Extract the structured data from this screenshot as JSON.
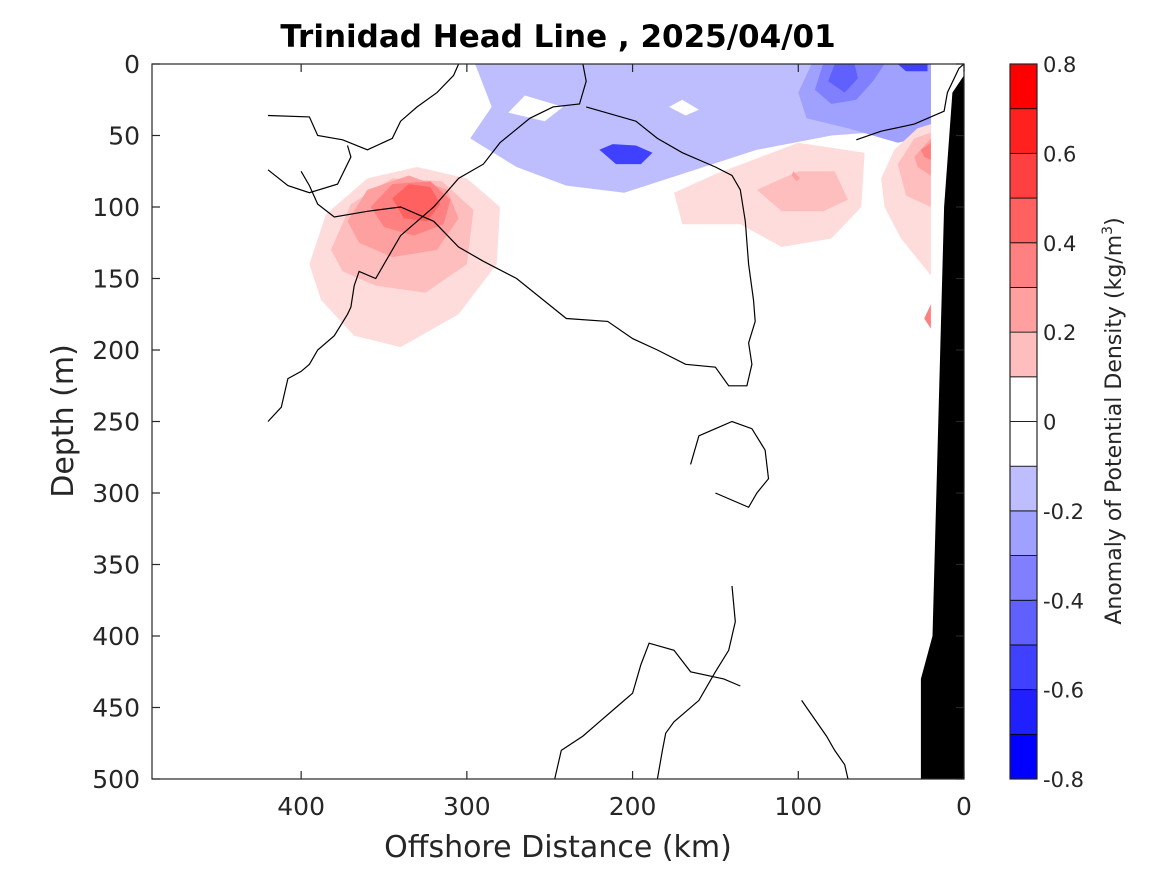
{
  "chart_data": {
    "type": "heatmap",
    "subtype": "filled-contour section",
    "title": "Trinidad Head Line , 2025/04/01",
    "xlabel": "Offshore Distance (km)",
    "ylabel": "Depth (m)",
    "colorbar_label": "Anomaly of Potential Density (kg/m",
    "colorbar_label_sup": "3",
    "colorbar_label_suffix": ")",
    "x_direction": "reversed",
    "y_direction": "reversed",
    "xlim": [
      0,
      490
    ],
    "ylim": [
      0,
      500
    ],
    "x_ticks": [
      400,
      300,
      200,
      100,
      0
    ],
    "x_tick_labels": [
      "400",
      "300",
      "200",
      "100",
      "0"
    ],
    "y_ticks": [
      0,
      50,
      100,
      150,
      200,
      250,
      300,
      350,
      400,
      450,
      500
    ],
    "y_tick_labels": [
      "0",
      "50",
      "100",
      "150",
      "200",
      "250",
      "300",
      "350",
      "400",
      "450",
      "500"
    ],
    "colorbar": {
      "clim": [
        -0.8,
        0.8
      ],
      "levels": [
        -0.8,
        -0.7,
        -0.6,
        -0.5,
        -0.4,
        -0.3,
        -0.2,
        -0.1,
        0,
        0.1,
        0.2,
        0.3,
        0.4,
        0.5,
        0.6,
        0.7,
        0.8
      ],
      "tick_values": [
        0.8,
        0.6,
        0.4,
        0.2,
        0,
        -0.2,
        -0.4,
        -0.6,
        -0.8
      ],
      "tick_labels": [
        "0.8",
        "0.6",
        "0.4",
        "0.2",
        "0",
        "-0.2",
        "-0.4",
        "-0.6",
        "-0.8"
      ],
      "colors": [
        "#0000ff",
        "#2020ff",
        "#4040ff",
        "#6060ff",
        "#8080ff",
        "#a0a0ff",
        "#bebeff",
        "#dcdcff",
        "#ffffff",
        "#ffffff",
        "#ffdcdc",
        "#ffbebe",
        "#ffa0a0",
        "#ff8080",
        "#ff6060",
        "#ff4040",
        "#ff2020",
        "#ff0000"
      ]
    },
    "regions": [
      {
        "name": "offshore-positive-eddy",
        "polarity": "positive",
        "center": [
          330,
          95
        ],
        "peak_anomaly": 0.5,
        "levels": [
          0.1,
          0.2,
          0.3,
          0.4,
          0.5
        ],
        "rings": [
          [
            [
              395,
              140
            ],
            [
              385,
              105
            ],
            [
              360,
              80
            ],
            [
              330,
              72
            ],
            [
              300,
              80
            ],
            [
              280,
              100
            ],
            [
              282,
              140
            ],
            [
              305,
              175
            ],
            [
              340,
              198
            ],
            [
              368,
              190
            ],
            [
              388,
              165
            ]
          ],
          [
            [
              382,
              130
            ],
            [
              370,
              98
            ],
            [
              345,
              80
            ],
            [
              315,
              82
            ],
            [
              296,
              102
            ],
            [
              300,
              140
            ],
            [
              325,
              160
            ],
            [
              355,
              155
            ],
            [
              375,
              145
            ]
          ],
          [
            [
              372,
              110
            ],
            [
              360,
              88
            ],
            [
              335,
              78
            ],
            [
              312,
              88
            ],
            [
              305,
              108
            ],
            [
              318,
              130
            ],
            [
              345,
              135
            ],
            [
              365,
              125
            ]
          ],
          [
            [
              358,
              100
            ],
            [
              345,
              84
            ],
            [
              322,
              82
            ],
            [
              310,
              95
            ],
            [
              314,
              112
            ],
            [
              332,
              120
            ],
            [
              350,
              114
            ]
          ],
          [
            [
              345,
              94
            ],
            [
              335,
              84
            ],
            [
              322,
              86
            ],
            [
              316,
              98
            ],
            [
              324,
              110
            ],
            [
              338,
              108
            ]
          ]
        ]
      },
      {
        "name": "surface-negative-layer",
        "polarity": "negative",
        "min_anomaly": -0.5,
        "levels": [
          -0.1,
          -0.2,
          -0.3,
          -0.4,
          -0.5
        ],
        "rings": [
          [
            [
              295,
              0
            ],
            [
              285,
              30
            ],
            [
              298,
              52
            ],
            [
              270,
              72
            ],
            [
              240,
              85
            ],
            [
              205,
              90
            ],
            [
              165,
              75
            ],
            [
              125,
              60
            ],
            [
              80,
              50
            ],
            [
              45,
              47
            ],
            [
              20,
              42
            ],
            [
              20,
              0
            ]
          ],
          [
            [
              92,
              0
            ],
            [
              100,
              20
            ],
            [
              95,
              38
            ],
            [
              70,
              45
            ],
            [
              55,
              50
            ],
            [
              40,
              55
            ],
            [
              20,
              50
            ],
            [
              20,
              0
            ]
          ],
          [
            [
              85,
              0
            ],
            [
              90,
              18
            ],
            [
              80,
              28
            ],
            [
              65,
              25
            ],
            [
              55,
              12
            ],
            [
              48,
              0
            ]
          ],
          [
            [
              78,
              0
            ],
            [
              82,
              12
            ],
            [
              72,
              20
            ],
            [
              64,
              10
            ],
            [
              66,
              0
            ]
          ],
          [
            [
              40,
              0
            ],
            [
              35,
              5
            ],
            [
              22,
              5
            ],
            [
              22,
              0
            ]
          ],
          [
            [
              220,
              60
            ],
            [
              210,
              70
            ],
            [
              195,
              70
            ],
            [
              188,
              62
            ],
            [
              198,
              57
            ],
            [
              212,
              56
            ]
          ]
        ],
        "holes": [
          [
            [
              265,
              22
            ],
            [
              242,
              30
            ],
            [
              253,
              40
            ],
            [
              275,
              34
            ]
          ],
          [
            [
              170,
              25
            ],
            [
              160,
              32
            ],
            [
              168,
              36
            ],
            [
              178,
              30
            ]
          ]
        ]
      },
      {
        "name": "nearshore-positive-1",
        "polarity": "positive",
        "peak_anomaly": 0.3,
        "levels": [
          0.1,
          0.2,
          0.3
        ],
        "rings": [
          [
            [
              175,
              90
            ],
            [
              150,
              77
            ],
            [
              100,
              55
            ],
            [
              60,
              62
            ],
            [
              62,
              100
            ],
            [
              80,
              122
            ],
            [
              110,
              128
            ],
            [
              135,
              112
            ],
            [
              170,
              112
            ]
          ],
          [
            [
              125,
              88
            ],
            [
              100,
              75
            ],
            [
              78,
              75
            ],
            [
              70,
              95
            ],
            [
              85,
              103
            ],
            [
              110,
              103
            ]
          ],
          [
            [
              103,
              75
            ],
            [
              99,
              80
            ],
            [
              101,
              82
            ],
            [
              104,
              78
            ]
          ]
        ]
      },
      {
        "name": "nearshore-positive-2",
        "polarity": "positive",
        "peak_anomaly": 0.4,
        "levels": [
          0.1,
          0.2,
          0.3,
          0.4
        ],
        "rings": [
          [
            [
              50,
              80
            ],
            [
              42,
              60
            ],
            [
              28,
              45
            ],
            [
              20,
              42
            ],
            [
              20,
              148
            ],
            [
              38,
              122
            ],
            [
              48,
              100
            ]
          ],
          [
            [
              40,
              70
            ],
            [
              30,
              52
            ],
            [
              20,
              48
            ],
            [
              20,
              100
            ],
            [
              35,
              92
            ]
          ],
          [
            [
              30,
              65
            ],
            [
              20,
              52
            ],
            [
              20,
              78
            ],
            [
              28,
              72
            ]
          ],
          [
            [
              26,
              60
            ],
            [
              20,
              55
            ],
            [
              20,
              67
            ],
            [
              24,
              65
            ]
          ],
          [
            [
              24,
              178
            ],
            [
              20,
              168
            ],
            [
              20,
              185
            ]
          ]
        ]
      }
    ],
    "zero_contours": [
      [
        [
          420,
          36
        ],
        [
          395,
          37
        ],
        [
          390,
          50
        ],
        [
          375,
          53
        ],
        [
          360,
          60
        ],
        [
          345,
          52
        ],
        [
          340,
          40
        ],
        [
          330,
          30
        ],
        [
          318,
          20
        ],
        [
          308,
          8
        ],
        [
          305,
          0
        ]
      ],
      [
        [
          420,
          74
        ],
        [
          408,
          85
        ],
        [
          395,
          90
        ],
        [
          378,
          84
        ],
        [
          370,
          65
        ],
        [
          372,
          57
        ]
      ],
      [
        [
          230,
          0
        ],
        [
          228,
          12
        ],
        [
          232,
          28
        ],
        [
          248,
          30
        ],
        [
          262,
          38
        ],
        [
          280,
          55
        ],
        [
          290,
          70
        ],
        [
          305,
          80
        ],
        [
          320,
          100
        ],
        [
          340,
          120
        ],
        [
          350,
          140
        ],
        [
          355,
          150
        ],
        [
          365,
          145
        ],
        [
          368,
          155
        ],
        [
          370,
          170
        ],
        [
          372,
          175
        ],
        [
          380,
          190
        ],
        [
          390,
          200
        ],
        [
          395,
          210
        ],
        [
          400,
          215
        ],
        [
          408,
          220
        ],
        [
          410,
          230
        ],
        [
          412,
          240
        ],
        [
          420,
          250
        ]
      ],
      [
        [
          65,
          53
        ],
        [
          50,
          47
        ],
        [
          30,
          42
        ],
        [
          12,
          33
        ],
        [
          10,
          20
        ],
        [
          3,
          3
        ],
        [
          0,
          0
        ]
      ],
      [
        [
          228,
          30
        ],
        [
          198,
          40
        ],
        [
          185,
          52
        ],
        [
          170,
          62
        ],
        [
          150,
          72
        ],
        [
          140,
          78
        ],
        [
          135,
          88
        ],
        [
          132,
          110
        ],
        [
          130,
          140
        ],
        [
          127,
          165
        ],
        [
          126,
          180
        ],
        [
          130,
          195
        ],
        [
          128,
          210
        ],
        [
          131,
          225
        ],
        [
          142,
          225
        ],
        [
          150,
          212
        ],
        [
          168,
          210
        ],
        [
          185,
          200
        ],
        [
          200,
          192
        ],
        [
          215,
          180
        ],
        [
          240,
          178
        ],
        [
          270,
          150
        ],
        [
          290,
          138
        ],
        [
          305,
          128
        ],
        [
          320,
          110
        ],
        [
          340,
          100
        ],
        [
          360,
          103
        ],
        [
          380,
          107
        ],
        [
          390,
          98
        ],
        [
          395,
          85
        ],
        [
          400,
          75
        ]
      ],
      [
        [
          150,
          300
        ],
        [
          130,
          310
        ],
        [
          125,
          300
        ],
        [
          118,
          290
        ],
        [
          120,
          270
        ],
        [
          128,
          255
        ],
        [
          140,
          250
        ],
        [
          150,
          255
        ],
        [
          160,
          260
        ],
        [
          165,
          280
        ]
      ],
      [
        [
          140,
          365
        ],
        [
          138,
          390
        ],
        [
          142,
          410
        ],
        [
          150,
          425
        ],
        [
          160,
          445
        ],
        [
          175,
          460
        ],
        [
          180,
          468
        ],
        [
          182,
          480
        ],
        [
          185,
          500
        ]
      ],
      [
        [
          135,
          435
        ],
        [
          145,
          430
        ],
        [
          165,
          425
        ],
        [
          175,
          410
        ],
        [
          190,
          405
        ],
        [
          195,
          420
        ],
        [
          200,
          440
        ],
        [
          210,
          450
        ],
        [
          220,
          460
        ],
        [
          230,
          470
        ],
        [
          243,
          480
        ],
        [
          247,
          500
        ]
      ],
      [
        [
          98,
          445
        ],
        [
          92,
          455
        ],
        [
          83,
          470
        ],
        [
          78,
          480
        ],
        [
          72,
          490
        ],
        [
          70,
          500
        ]
      ]
    ],
    "coast_mask_km": [
      [
        0,
        0
      ],
      [
        0,
        500
      ],
      [
        26,
        500
      ],
      [
        26,
        430
      ],
      [
        19,
        400
      ],
      [
        12,
        100
      ],
      [
        7,
        20
      ],
      [
        0,
        8
      ]
    ],
    "grid": false
  }
}
